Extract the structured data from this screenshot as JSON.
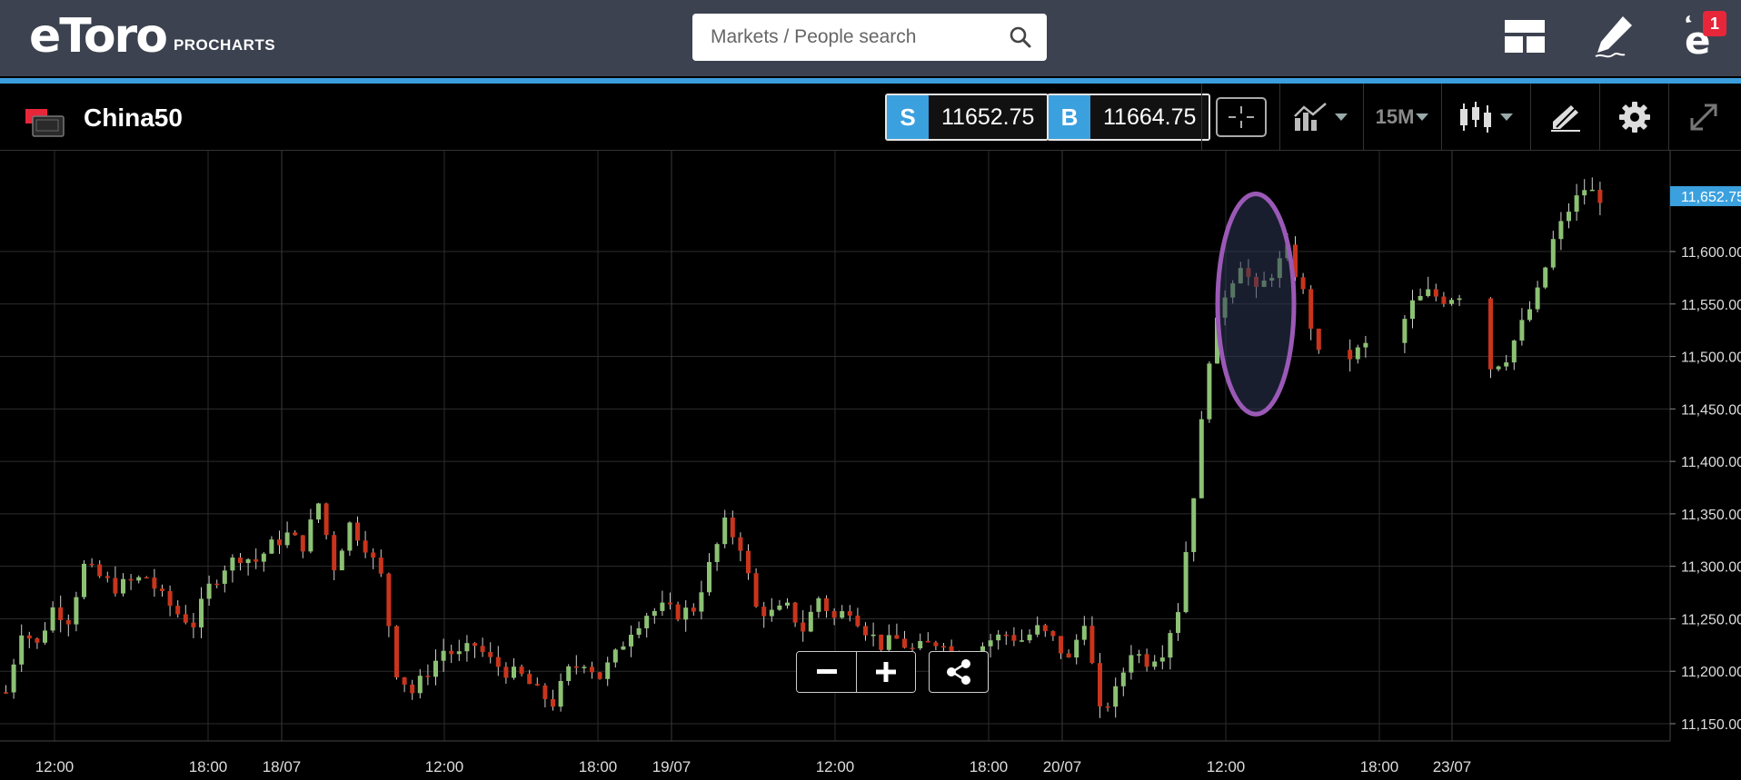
{
  "app": {
    "logo_text": "eToro",
    "logo_subtitle": "PROCHARTS"
  },
  "search": {
    "placeholder": "Markets / People search",
    "icon": "search-icon"
  },
  "nav": {
    "layout_icon": "layout-icon",
    "edit_icon": "pen-icon",
    "notifications_icon": "etoro-notifications-icon",
    "notification_count": "1"
  },
  "instrument": {
    "name": "China50",
    "icon": "china-flag-icon"
  },
  "prices": {
    "sell_label": "S",
    "sell_value": "11652.75",
    "buy_label": "B",
    "buy_value": "11664.75"
  },
  "toolbar": {
    "interval": "15M",
    "crosshair_icon": "crosshair-icon",
    "indicators_icon": "indicators-icon",
    "chart_type_icon": "candlestick-icon",
    "drawing_icon": "drawing-tools-icon",
    "settings_icon": "gear-icon",
    "fullscreen_icon": "expand-icon"
  },
  "chart_data": {
    "type": "candlestick",
    "instrument": "China50",
    "interval": "15M",
    "ylim": [
      11135,
      11695
    ],
    "y_ticks": [
      11150,
      11200,
      11250,
      11300,
      11350,
      11400,
      11450,
      11500,
      11550,
      11600
    ],
    "y_tick_labels": [
      "11,150.00",
      "11,200.00",
      "11,250.00",
      "11,300.00",
      "11,350.00",
      "11,400.00",
      "11,450.00",
      "11,500.00",
      "11,550.00",
      "11,600.00"
    ],
    "x_tick_labels": [
      "12:00",
      "18:00",
      "18/07",
      "12:00",
      "18:00",
      "19/07",
      "12:00",
      "18:00",
      "20/07",
      "12:00",
      "18:00",
      "23/07"
    ],
    "last_price_label": "11,652.75",
    "last_price": 11652.75,
    "up_color": "#8cc174",
    "down_color": "#c8341c",
    "grid": true,
    "annotation": {
      "shape": "ellipse",
      "color": "#9b59b6",
      "price_from": 11445,
      "price_to": 11655
    },
    "close_path": [
      11180,
      11240,
      11225,
      11260,
      11250,
      11300,
      11290,
      11280,
      11285,
      11290,
      11270,
      11255,
      11245,
      11280,
      11300,
      11310,
      11305,
      11320,
      11330,
      11320,
      11360,
      11300,
      11340,
      11320,
      11290,
      11200,
      11180,
      11200,
      11220,
      11215,
      11225,
      11210,
      11200,
      11195,
      11180,
      11170,
      11200,
      11210,
      11195,
      11215,
      11240,
      11255,
      11260,
      11255,
      11260,
      11300,
      11340,
      11320,
      11260,
      11255,
      11260,
      11240,
      11270,
      11250,
      11260,
      11240,
      11225,
      11230,
      11220,
      11225,
      11230,
      11200,
      11220,
      11230,
      11235,
      11230,
      11240,
      11230,
      11210,
      11250,
      11160,
      11180,
      11220,
      11210,
      11220,
      11260,
      11370,
      11500,
      11560,
      11590,
      11560,
      11580,
      11600,
      11560,
      11500,
      11520,
      11500,
      11510,
      11500,
      11520,
      11550,
      11560,
      11555,
      11560,
      11555,
      11490,
      11500,
      11530,
      11560,
      11610,
      11640,
      11660,
      11652
    ]
  }
}
